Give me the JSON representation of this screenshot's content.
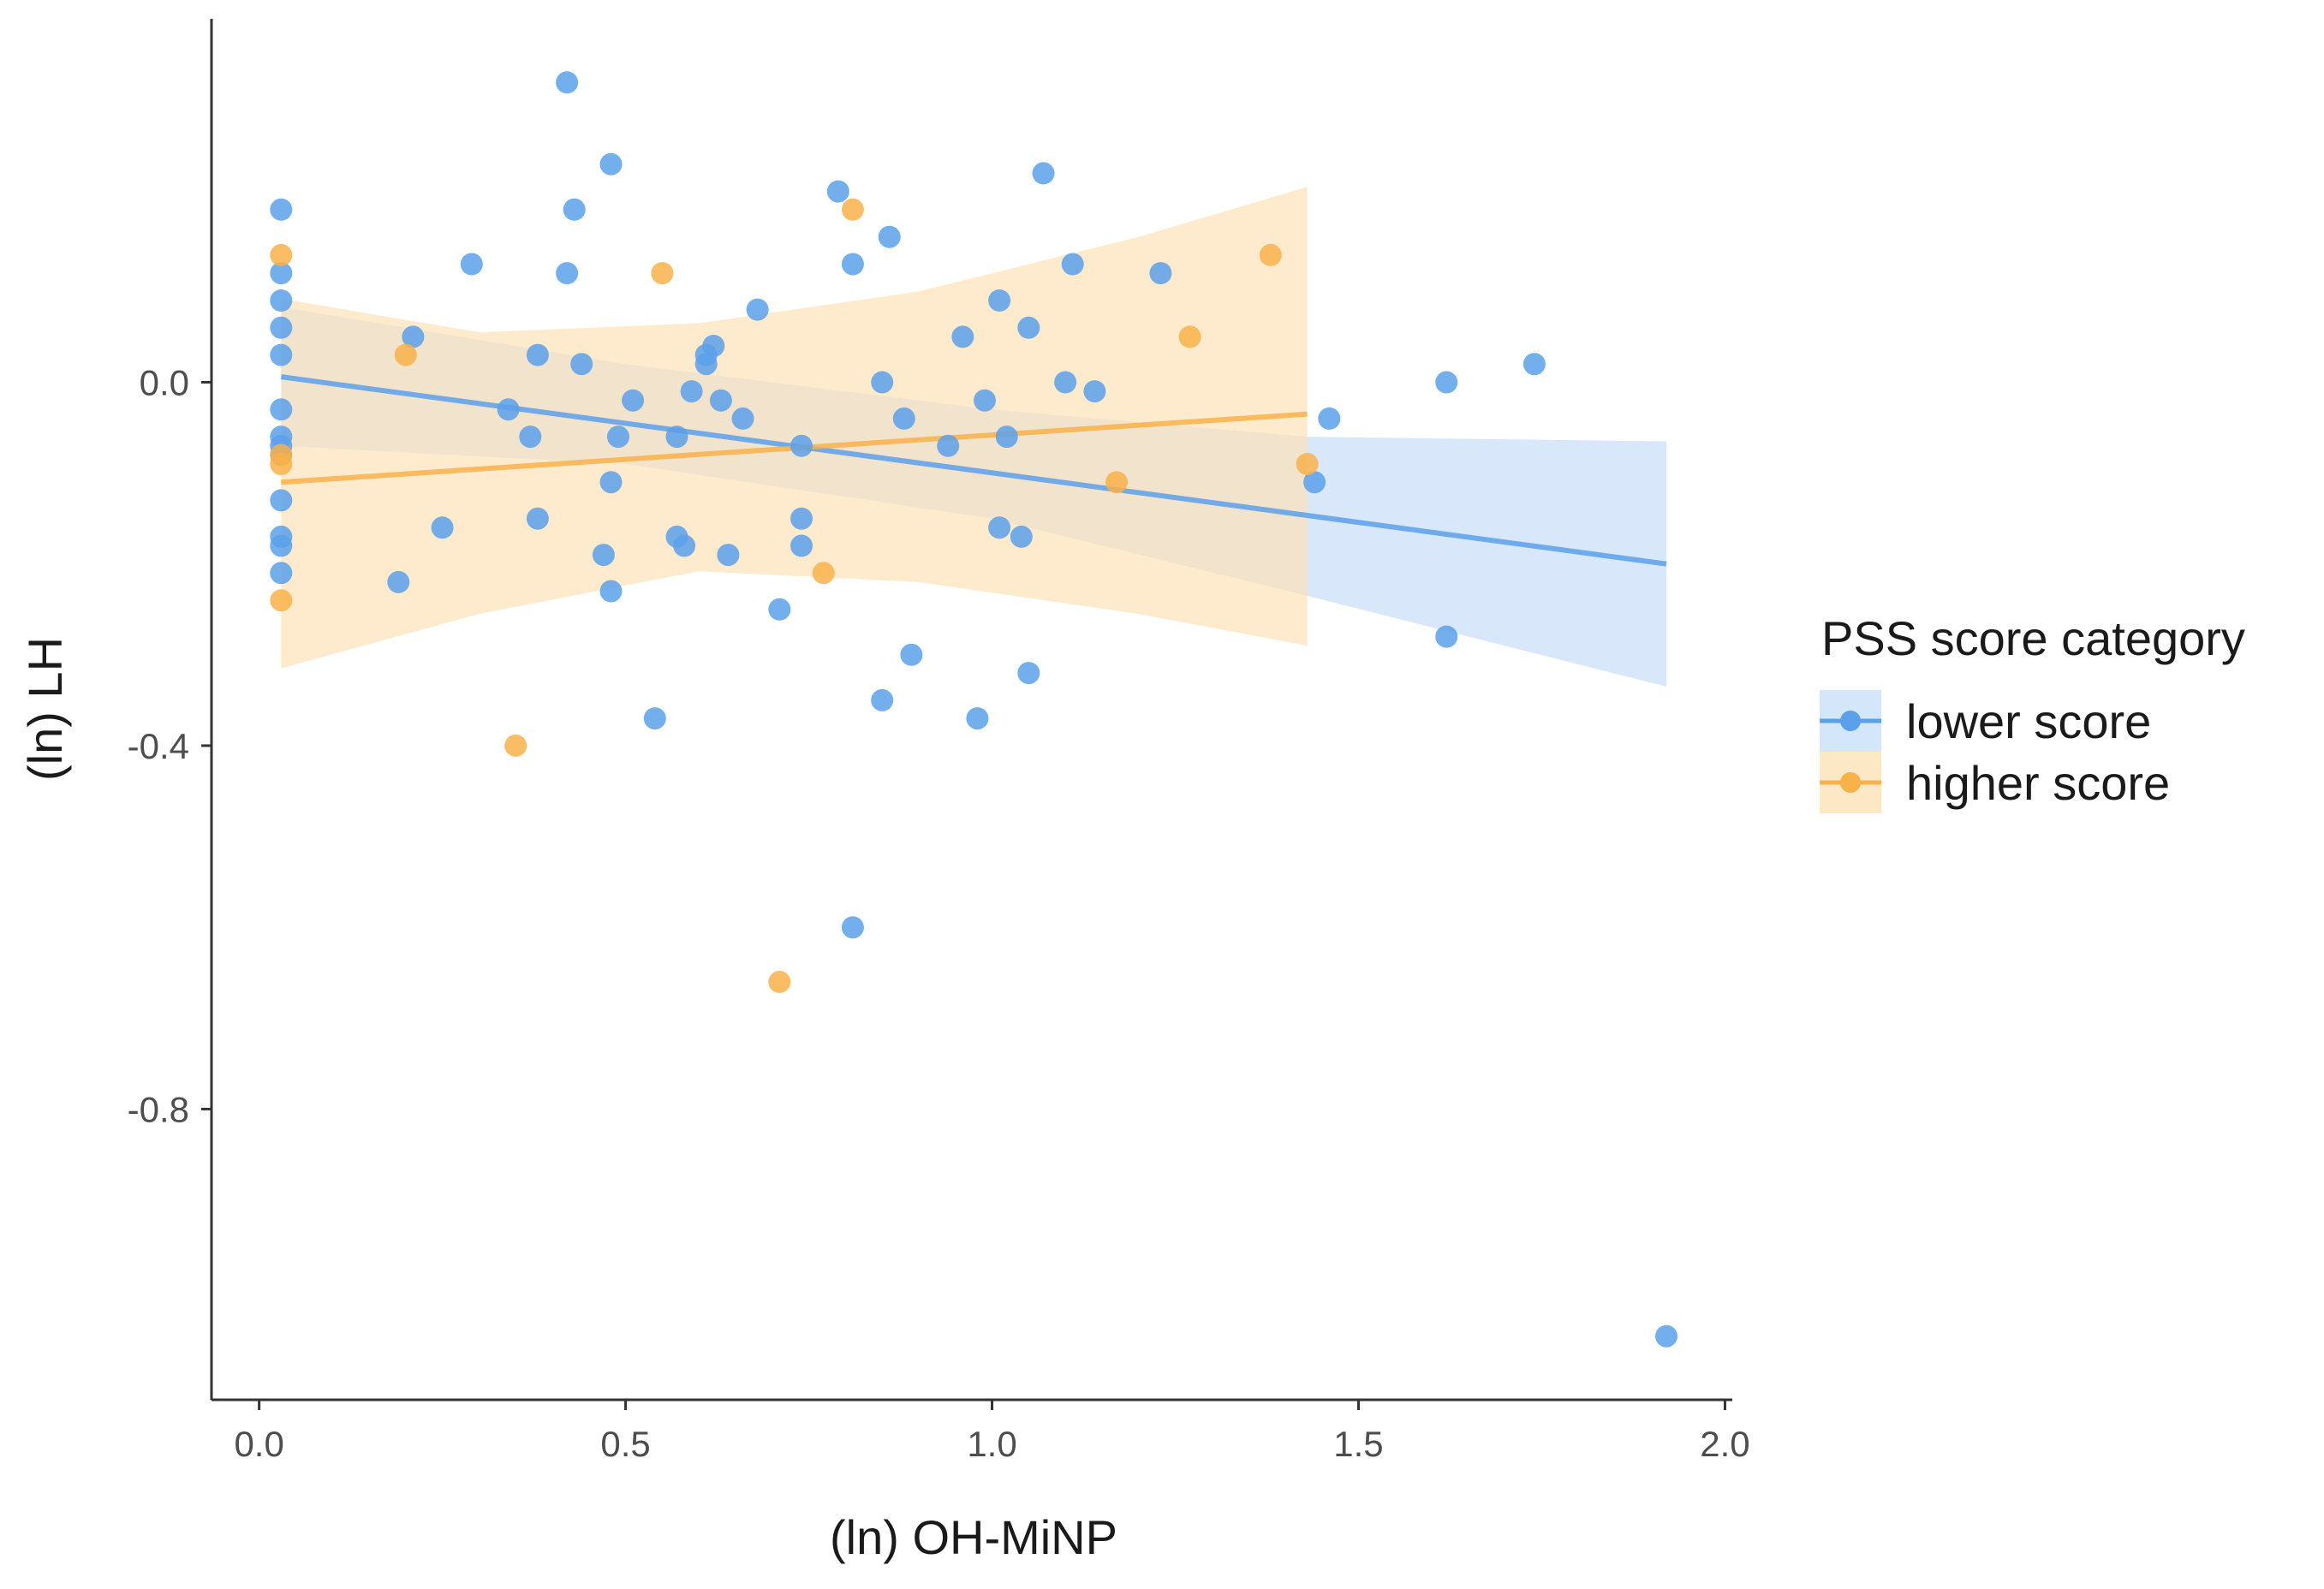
{
  "chart_data": {
    "type": "scatter",
    "title": "",
    "xlabel": "(ln) OH-MiNP",
    "ylabel": "(ln) LH",
    "xlim": [
      -0.065,
      2.01
    ],
    "ylim": [
      -1.12,
      0.4
    ],
    "xticks": [
      0.0,
      0.5,
      1.0,
      1.5,
      2.0
    ],
    "xtick_labels": [
      "0.0",
      "0.5",
      "1.0",
      "1.5",
      "2.0"
    ],
    "yticks": [
      0.0,
      -0.4,
      -0.8
    ],
    "ytick_labels": [
      "0.0",
      "-0.4",
      "-0.8"
    ],
    "grid": false,
    "legend": {
      "title": "PSS score category",
      "position": "right",
      "entries": [
        "lower score",
        "higher score"
      ]
    },
    "colors": {
      "lower": "#5aa0ea",
      "higher": "#f9b14a",
      "lower_band": "#a9cdf3",
      "higher_band": "#fde2b8",
      "axis": "#333333"
    },
    "series": [
      {
        "name": "lower score",
        "points": [
          [
            0.03,
            0.19
          ],
          [
            0.03,
            0.12
          ],
          [
            0.03,
            0.09
          ],
          [
            0.03,
            0.06
          ],
          [
            0.03,
            0.03
          ],
          [
            0.03,
            -0.03
          ],
          [
            0.03,
            -0.06
          ],
          [
            0.03,
            -0.07
          ],
          [
            0.03,
            -0.08
          ],
          [
            0.03,
            -0.13
          ],
          [
            0.03,
            -0.17
          ],
          [
            0.03,
            -0.18
          ],
          [
            0.03,
            -0.21
          ],
          [
            0.19,
            -0.22
          ],
          [
            0.21,
            0.05
          ],
          [
            0.25,
            -0.16
          ],
          [
            0.29,
            0.13
          ],
          [
            0.34,
            -0.03
          ],
          [
            0.37,
            -0.06
          ],
          [
            0.38,
            0.03
          ],
          [
            0.38,
            -0.15
          ],
          [
            0.42,
            0.33
          ],
          [
            0.42,
            0.12
          ],
          [
            0.43,
            0.19
          ],
          [
            0.44,
            0.02
          ],
          [
            0.47,
            -0.19
          ],
          [
            0.48,
            0.24
          ],
          [
            0.48,
            -0.11
          ],
          [
            0.48,
            -0.23
          ],
          [
            0.49,
            -0.06
          ],
          [
            0.51,
            -0.02
          ],
          [
            0.54,
            -0.37
          ],
          [
            0.57,
            -0.06
          ],
          [
            0.57,
            -0.17
          ],
          [
            0.58,
            -0.18
          ],
          [
            0.59,
            -0.01
          ],
          [
            0.61,
            0.03
          ],
          [
            0.61,
            0.02
          ],
          [
            0.62,
            0.04
          ],
          [
            0.63,
            -0.02
          ],
          [
            0.64,
            -0.19
          ],
          [
            0.66,
            -0.04
          ],
          [
            0.68,
            0.08
          ],
          [
            0.71,
            -0.25
          ],
          [
            0.74,
            -0.07
          ],
          [
            0.74,
            -0.15
          ],
          [
            0.74,
            -0.18
          ],
          [
            0.79,
            0.21
          ],
          [
            0.81,
            0.13
          ],
          [
            0.81,
            -0.6
          ],
          [
            0.85,
            0.0
          ],
          [
            0.85,
            -0.35
          ],
          [
            0.86,
            0.16
          ],
          [
            0.88,
            -0.04
          ],
          [
            0.89,
            -0.3
          ],
          [
            0.94,
            -0.07
          ],
          [
            0.96,
            0.05
          ],
          [
            0.98,
            -0.37
          ],
          [
            0.99,
            -0.02
          ],
          [
            1.01,
            0.09
          ],
          [
            1.01,
            -0.16
          ],
          [
            1.02,
            -0.06
          ],
          [
            1.04,
            -0.17
          ],
          [
            1.05,
            0.06
          ],
          [
            1.05,
            -0.32
          ],
          [
            1.07,
            0.23
          ],
          [
            1.1,
            0.0
          ],
          [
            1.11,
            0.13
          ],
          [
            1.14,
            -0.01
          ],
          [
            1.23,
            0.12
          ],
          [
            1.44,
            -0.11
          ],
          [
            1.46,
            -0.04
          ],
          [
            1.62,
            0.0
          ],
          [
            1.62,
            -0.28
          ],
          [
            1.74,
            0.02
          ],
          [
            1.92,
            -1.05
          ]
        ],
        "fit": {
          "x": [
            0.03,
            1.92
          ],
          "y": [
            0.006,
            -0.2
          ]
        },
        "band_lower": [
          [
            0.03,
            -0.07
          ],
          [
            0.5,
            -0.09
          ],
          [
            1.0,
            -0.15
          ],
          [
            1.43,
            -0.235
          ],
          [
            1.92,
            -0.335
          ]
        ],
        "band_upper": [
          [
            0.03,
            0.083
          ],
          [
            0.5,
            0.02
          ],
          [
            1.0,
            -0.03
          ],
          [
            1.43,
            -0.06
          ],
          [
            1.92,
            -0.065
          ]
        ]
      },
      {
        "name": "higher score",
        "points": [
          [
            0.03,
            0.14
          ],
          [
            0.03,
            -0.08
          ],
          [
            0.03,
            -0.09
          ],
          [
            0.03,
            -0.24
          ],
          [
            0.2,
            0.03
          ],
          [
            0.35,
            -0.4
          ],
          [
            0.55,
            0.12
          ],
          [
            0.71,
            -0.66
          ],
          [
            0.77,
            -0.21
          ],
          [
            0.81,
            0.19
          ],
          [
            1.17,
            -0.11
          ],
          [
            1.27,
            0.05
          ],
          [
            1.38,
            0.14
          ],
          [
            1.43,
            -0.09
          ]
        ],
        "fit": {
          "x": [
            0.03,
            1.43
          ],
          "y": [
            -0.11,
            -0.035
          ]
        },
        "band_lower": [
          [
            0.03,
            -0.315
          ],
          [
            0.3,
            -0.255
          ],
          [
            0.6,
            -0.208
          ],
          [
            0.9,
            -0.22
          ],
          [
            1.2,
            -0.255
          ],
          [
            1.43,
            -0.29
          ]
        ],
        "band_upper": [
          [
            0.03,
            0.092
          ],
          [
            0.3,
            0.055
          ],
          [
            0.6,
            0.065
          ],
          [
            0.9,
            0.1
          ],
          [
            1.2,
            0.16
          ],
          [
            1.43,
            0.215
          ]
        ]
      }
    ]
  }
}
